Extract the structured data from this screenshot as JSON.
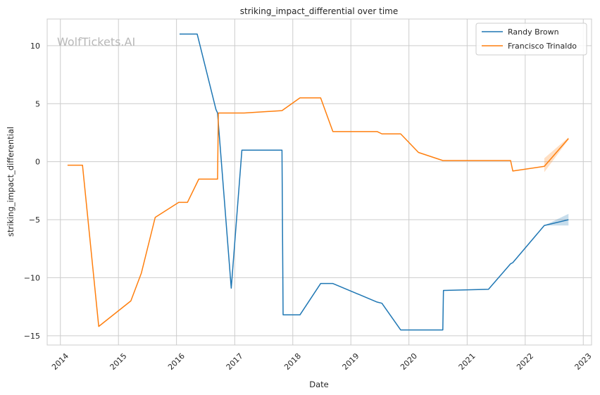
{
  "watermark": "WolfTickets.AI",
  "chart_data": {
    "type": "line",
    "title": "striking_impact_differential over time",
    "xlabel": "Date",
    "ylabel": "striking_impact_differential",
    "xlim": [
      "2013-10-10",
      "2023-02-22"
    ],
    "ylim": [
      -15.8,
      12.3
    ],
    "x_ticks": [
      "2014-01-01",
      "2015-01-01",
      "2016-01-01",
      "2017-01-01",
      "2018-01-01",
      "2019-01-01",
      "2020-01-01",
      "2021-01-01",
      "2022-01-01",
      "2023-01-01"
    ],
    "x_tick_labels": [
      "2014",
      "2015",
      "2016",
      "2017",
      "2018",
      "2019",
      "2020",
      "2021",
      "2022",
      "2023"
    ],
    "y_ticks": [
      10,
      5,
      0,
      -5,
      -10,
      -15
    ],
    "y_tick_labels": [
      "10",
      "5",
      "0",
      "−5",
      "−10",
      "−15"
    ],
    "grid": true,
    "legend_position": "top-right",
    "series": [
      {
        "name": "Randy Brown",
        "color": "#1f77b4",
        "x": [
          "2016-01-20",
          "2016-05-10",
          "2016-09-05",
          "2016-09-15",
          "2016-12-10",
          "2017-02-15",
          "2017-10-25",
          "2017-11-01",
          "2018-02-15",
          "2018-06-25",
          "2018-09-10",
          "2019-06-15",
          "2019-07-15",
          "2019-11-10",
          "2020-08-01",
          "2020-08-05",
          "2021-05-15",
          "2021-10-01",
          "2021-10-15",
          "2022-05-01",
          "2022-09-30"
        ],
        "y": [
          11.0,
          11.0,
          4.5,
          4.2,
          -10.9,
          1.0,
          1.0,
          -13.2,
          -13.2,
          -10.5,
          -10.5,
          -12.1,
          -12.2,
          -14.5,
          -14.5,
          -11.1,
          -11.0,
          -8.8,
          -8.7,
          -5.5,
          -5.0
        ],
        "band": {
          "x": [
            "2022-05-01",
            "2022-09-30"
          ],
          "upper": [
            -5.5,
            -4.5
          ],
          "lower": [
            -5.5,
            -5.5
          ]
        }
      },
      {
        "name": "Francisco Trinaldo",
        "color": "#ff7f0e",
        "x": [
          "2014-02-15",
          "2014-05-20",
          "2014-08-30",
          "2015-03-20",
          "2015-05-25",
          "2015-08-20",
          "2016-01-15",
          "2016-03-10",
          "2016-05-20",
          "2016-09-15",
          "2016-09-20",
          "2017-03-01",
          "2017-10-25",
          "2018-02-15",
          "2018-06-25",
          "2018-09-10",
          "2019-06-15",
          "2019-07-15",
          "2019-11-10",
          "2020-03-01",
          "2020-08-01",
          "2021-01-01",
          "2021-10-01",
          "2021-10-15",
          "2022-05-01",
          "2022-09-30"
        ],
        "y": [
          -0.3,
          -0.3,
          -14.2,
          -12.0,
          -9.6,
          -4.8,
          -3.5,
          -3.5,
          -1.5,
          -1.5,
          4.2,
          4.2,
          4.4,
          5.5,
          5.5,
          2.6,
          2.6,
          2.4,
          2.4,
          0.8,
          0.1,
          0.1,
          0.1,
          -0.8,
          -0.4,
          2.0
        ],
        "band": {
          "x": [
            "2022-05-01",
            "2022-09-30"
          ],
          "upper": [
            0.3,
            2.1
          ],
          "lower": [
            -0.9,
            1.9
          ]
        }
      }
    ]
  }
}
